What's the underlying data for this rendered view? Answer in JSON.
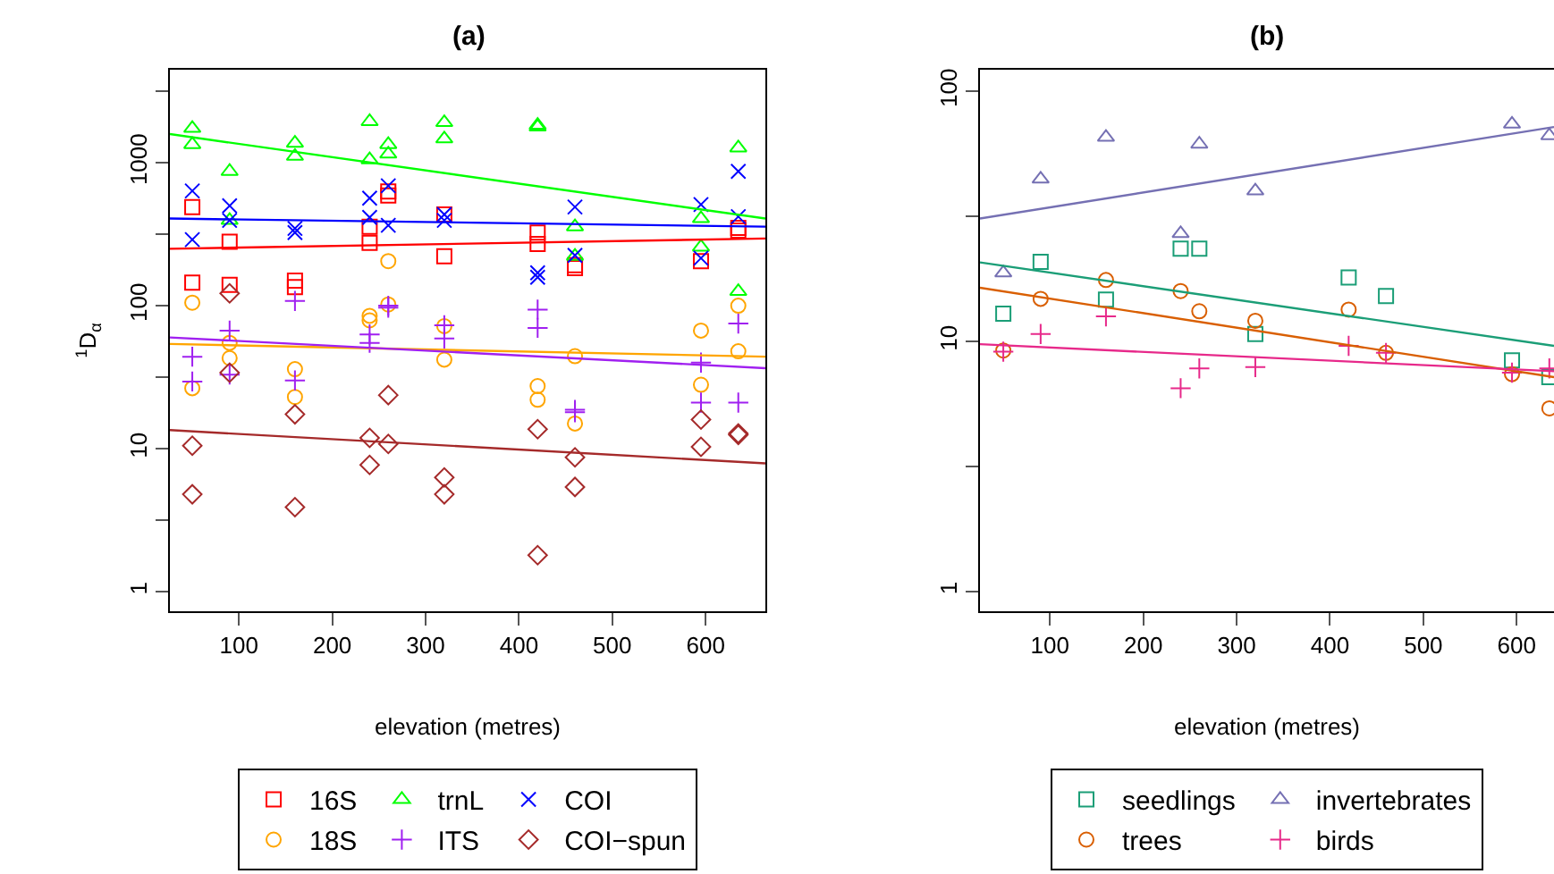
{
  "chart_data": [
    {
      "type": "scatter",
      "title": "(a)",
      "xlabel": "elevation (metres)",
      "ylabel": "$^{1}$D$_{α}$",
      "log": "y",
      "legend": "bottom",
      "xlim": [
        26,
        664
      ],
      "xticks": [
        100,
        200,
        300,
        400,
        500,
        600
      ],
      "ylim": [
        0.73,
        4470
      ],
      "yticks": [
        1,
        {
          "value": 3.16,
          "label": null
        },
        10,
        {
          "value": 31.6,
          "label": null
        },
        100,
        {
          "value": 316,
          "label": null
        },
        1000,
        {
          "value": 3162,
          "label": null
        }
      ],
      "series": [
        {
          "name": "16S",
          "color": "#ff0000",
          "marker": "square",
          "x": [
            50,
            50,
            90,
            90,
            160,
            160,
            240,
            240,
            260,
            260,
            320,
            320,
            420,
            420,
            460,
            460,
            595,
            635,
            635
          ],
          "values": [
            490,
            145,
            280,
            140,
            150,
            135,
            357,
            275,
            630,
            590,
            435,
            222,
            325,
            270,
            192,
            183,
            205,
            350,
            335
          ]
        },
        {
          "name": "18S",
          "color": "#ffa500",
          "marker": "circle",
          "x": [
            50,
            50,
            90,
            90,
            160,
            160,
            240,
            240,
            260,
            260,
            320,
            320,
            420,
            420,
            460,
            460,
            595,
            595,
            635,
            635
          ],
          "values": [
            105,
            26.5,
            55,
            43,
            36,
            23,
            85,
            79,
            205,
            102,
            72,
            42,
            27.4,
            22,
            44.4,
            15,
            67,
            28,
            100,
            48
          ]
        },
        {
          "name": "trnL",
          "color": "#00ff00",
          "marker": "triangle",
          "x": [
            50,
            50,
            90,
            90,
            160,
            160,
            240,
            240,
            260,
            260,
            320,
            320,
            420,
            420,
            460,
            460,
            595,
            595,
            635,
            635
          ],
          "values": [
            1740,
            1340,
            870,
            395,
            1370,
            1110,
            1940,
            1050,
            1340,
            1150,
            1910,
            1470,
            1830,
            1780,
            357,
            222,
            407,
            257,
            1270,
            126
          ]
        },
        {
          "name": "ITS",
          "color": "#a020f0",
          "marker": "cross",
          "x": [
            50,
            50,
            90,
            90,
            160,
            160,
            240,
            240,
            260,
            260,
            320,
            320,
            420,
            420,
            460,
            460,
            595,
            595,
            635,
            635
          ],
          "values": [
            44,
            29.5,
            67,
            33,
            108,
            30,
            63,
            55,
            100,
            97,
            73,
            59,
            94,
            70,
            18.7,
            18,
            40,
            21,
            75,
            21
          ]
        },
        {
          "name": "COI",
          "color": "#0000ff",
          "marker": "x",
          "x": [
            50,
            50,
            90,
            90,
            160,
            160,
            240,
            240,
            260,
            260,
            320,
            320,
            420,
            420,
            460,
            460,
            595,
            595,
            635,
            635
          ],
          "values": [
            635,
            290,
            500,
            395,
            347,
            325,
            565,
            415,
            690,
            365,
            435,
            395,
            170,
            158,
            490,
            225,
            510,
            215,
            870,
            420
          ]
        },
        {
          "name": "COI−spun",
          "color": "#a52a2a",
          "marker": "diamond",
          "x": [
            50,
            50,
            90,
            90,
            160,
            160,
            240,
            240,
            260,
            260,
            320,
            320,
            420,
            420,
            460,
            460,
            595,
            595,
            635,
            635
          ],
          "values": [
            10.5,
            4.8,
            122,
            34,
            17.4,
            3.9,
            11.9,
            7.7,
            23.7,
            10.8,
            6.3,
            4.8,
            13.7,
            1.8,
            8.7,
            5.4,
            16,
            10.3,
            12.8,
            12.5
          ]
        },
        {
          "type": "line",
          "color": "#ff0000",
          "x": [
            26,
            664
          ],
          "values": [
            250,
            295
          ]
        },
        {
          "type": "line",
          "color": "#ffa500",
          "x": [
            26,
            664
          ],
          "values": [
            54,
            44
          ]
        },
        {
          "type": "line",
          "color": "#00ff00",
          "x": [
            26,
            664
          ],
          "values": [
            1585,
            407
          ]
        },
        {
          "type": "line",
          "color": "#a020f0",
          "x": [
            26,
            664
          ],
          "values": [
            60,
            36.6
          ]
        },
        {
          "type": "line",
          "color": "#0000ff",
          "x": [
            26,
            664
          ],
          "values": [
            407,
            357
          ]
        },
        {
          "type": "line",
          "color": "#a52a2a",
          "x": [
            26,
            664
          ],
          "values": [
            13.5,
            7.9
          ]
        }
      ]
    },
    {
      "type": "scatter",
      "title": "(b)",
      "xlabel": "elevation (metres)",
      "log": "y",
      "legend": "bottom",
      "xlim": [
        25,
        640
      ],
      "xticks": [
        100,
        200,
        300,
        400,
        500,
        600
      ],
      "ylim": [
        0.834,
        122
      ],
      "yticks": [
        1,
        {
          "value": 3.16,
          "label": null
        },
        10,
        {
          "value": 31.6,
          "label": null
        },
        100
      ],
      "series": [
        {
          "name": "seedlings",
          "color": "#1b9e77",
          "marker": "square",
          "x": [
            50,
            90,
            160,
            240,
            260,
            320,
            420,
            460,
            595,
            635
          ],
          "values": [
            12.9,
            20.8,
            14.7,
            23.5,
            23.5,
            10.7,
            18,
            15.2,
            8.4,
            7.2
          ]
        },
        {
          "name": "trees",
          "color": "#d95f02",
          "marker": "circle",
          "x": [
            50,
            90,
            160,
            240,
            260,
            320,
            420,
            460,
            595,
            635
          ],
          "values": [
            9.2,
            14.8,
            17.6,
            15.9,
            13.2,
            12.1,
            13.4,
            9.0,
            7.4,
            5.4
          ]
        },
        {
          "name": "invertebrates",
          "color": "#7570b3",
          "marker": "triangle",
          "x": [
            50,
            90,
            160,
            240,
            260,
            320,
            595,
            635
          ],
          "values": [
            18.8,
            44.6,
            65.5,
            27,
            61.5,
            40,
            74,
            66.5
          ]
        },
        {
          "name": "birds",
          "color": "#e7298a",
          "marker": "cross",
          "x": [
            50,
            90,
            160,
            240,
            260,
            320,
            420,
            460,
            595,
            635
          ],
          "values": [
            9.1,
            10.7,
            12.6,
            6.5,
            7.8,
            7.9,
            9.6,
            9.0,
            7.5,
            7.8
          ]
        },
        {
          "type": "line",
          "color": "#1b9e77",
          "x": [
            25,
            640
          ],
          "values": [
            20.7,
            9.6
          ]
        },
        {
          "type": "line",
          "color": "#d95f02",
          "x": [
            25,
            640
          ],
          "values": [
            16.4,
            7.2
          ]
        },
        {
          "type": "line",
          "color": "#7570b3",
          "x": [
            25,
            640
          ],
          "values": [
            31,
            72
          ]
        },
        {
          "type": "line",
          "color": "#e7298a",
          "x": [
            25,
            640
          ],
          "values": [
            9.75,
            7.6
          ]
        }
      ]
    }
  ]
}
